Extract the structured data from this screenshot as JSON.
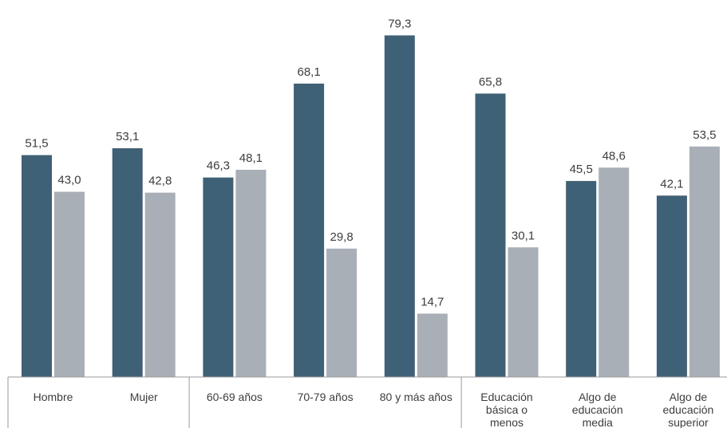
{
  "chart_data": {
    "type": "bar",
    "categories": [
      [
        "Hombre"
      ],
      [
        "Mujer"
      ],
      [
        "60-69 años"
      ],
      [
        "70-79 años"
      ],
      [
        "80 y más años"
      ],
      [
        "Educación",
        "básica o",
        "menos"
      ],
      [
        "Algo de",
        "educación",
        "media"
      ],
      [
        "Algo de",
        "educación",
        "superior"
      ]
    ],
    "series": [
      {
        "color": "#3e6178",
        "values": [
          51.5,
          53.1,
          46.3,
          68.1,
          79.3,
          65.8,
          45.5,
          42.1
        ],
        "labels": [
          "51,5",
          "53,1",
          "46,3",
          "68,1",
          "79,3",
          "65,8",
          "45,5",
          "42,1"
        ]
      },
      {
        "color": "#a9afb6",
        "values": [
          43.0,
          42.8,
          48.1,
          29.8,
          14.7,
          30.1,
          48.6,
          53.5
        ],
        "labels": [
          "43,0",
          "42,8",
          "48,1",
          "29,8",
          "14,7",
          "30,1",
          "48,6",
          "53,5"
        ]
      }
    ],
    "groups": [
      [
        0,
        1
      ],
      [
        2,
        3,
        4
      ],
      [
        5,
        6,
        7
      ]
    ],
    "ylim": [
      0,
      84
    ],
    "grid": false,
    "legend": "none",
    "title": "",
    "xlabel": "",
    "ylabel": ""
  }
}
